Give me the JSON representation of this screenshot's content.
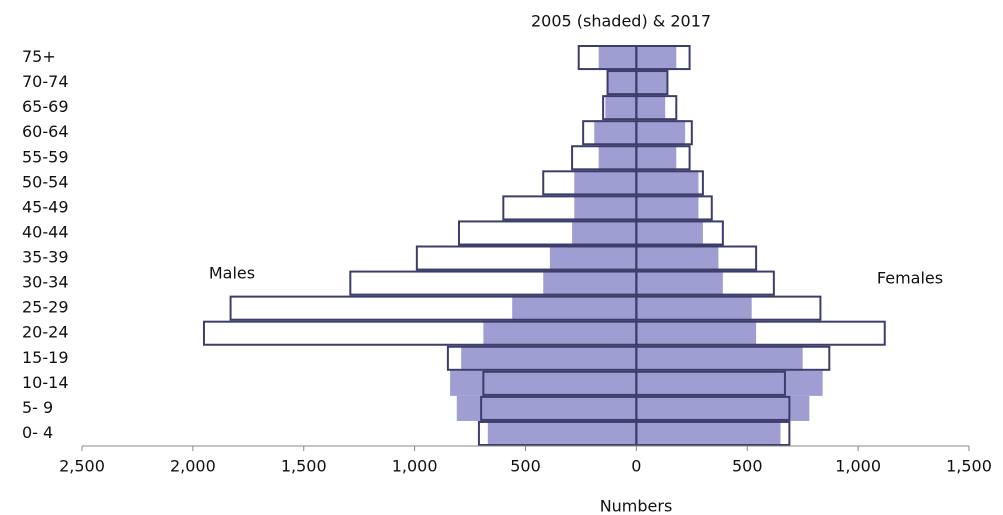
{
  "chart_data": {
    "type": "pyramid",
    "title": "2005 (shaded) & 2017",
    "x_label": "Numbers",
    "annotations": [
      "Males",
      "Females"
    ],
    "categories": [
      "0- 4",
      "5- 9",
      "10-14",
      "15-19",
      "20-24",
      "25-29",
      "30-34",
      "35-39",
      "40-44",
      "45-49",
      "50-54",
      "55-59",
      "60-64",
      "65-69",
      "70-74",
      "75+"
    ],
    "series": [
      {
        "color": "#9e9ed3",
        "fill": "#9e9ed3",
        "values": [
          -670,
          -810,
          -840,
          -790,
          -690,
          -560,
          -420,
          -390,
          -290,
          -280,
          -280,
          -170,
          -190,
          -140,
          -130,
          -170
        ]
      },
      {
        "color": "#9e9ed3",
        "fill": "#9e9ed3",
        "values": [
          650,
          780,
          840,
          750,
          540,
          520,
          390,
          370,
          300,
          280,
          280,
          180,
          220,
          130,
          140,
          180
        ]
      },
      {
        "color": "#3d3d6b",
        "fill": "none",
        "values": [
          -710,
          -700,
          -690,
          -850,
          -1950,
          -1830,
          -1290,
          -990,
          -800,
          -600,
          -420,
          -290,
          -240,
          -150,
          -130,
          -260
        ]
      },
      {
        "color": "#3d3d6b",
        "fill": "none",
        "values": [
          690,
          690,
          670,
          870,
          1120,
          830,
          620,
          540,
          390,
          340,
          300,
          240,
          250,
          180,
          140,
          240
        ]
      }
    ],
    "xlim": [
      -2500,
      1500
    ],
    "xticks": [
      {
        "value": -2500,
        "label": "2,500"
      },
      {
        "value": -2000,
        "label": "2,000"
      },
      {
        "value": -1500,
        "label": "1,500"
      },
      {
        "value": -1000,
        "label": "1,000"
      },
      {
        "value": -500,
        "label": "500"
      },
      0,
      500,
      {
        "value": 1000,
        "label": "1,000"
      },
      {
        "value": 1500,
        "label": "1,500"
      }
    ]
  }
}
